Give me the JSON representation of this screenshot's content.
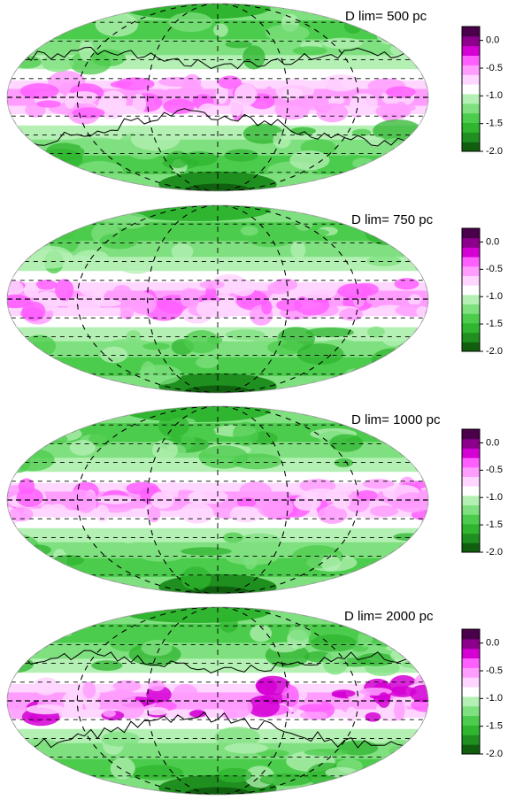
{
  "chart_data": [
    {
      "type": "heatmap",
      "title": "D lim= 500 pc",
      "colorbar": {
        "ticks": [
          "0.0",
          "-0.5",
          "-1.0",
          "-1.5",
          "-2.0"
        ],
        "range": [
          -2.0,
          0.25
        ]
      },
      "contours": true
    },
    {
      "type": "heatmap",
      "title": "D lim= 750 pc",
      "colorbar": {
        "ticks": [
          "0.0",
          "-0.5",
          "-1.0",
          "-1.5",
          "-2.0"
        ],
        "range": [
          -2.0,
          0.25
        ]
      },
      "contours": false
    },
    {
      "type": "heatmap",
      "title": "D lim= 1000 pc",
      "colorbar": {
        "ticks": [
          "0.0",
          "-0.5",
          "-1.0",
          "-1.5",
          "-2.0"
        ],
        "range": [
          -2.0,
          0.25
        ]
      },
      "contours": false
    },
    {
      "type": "heatmap",
      "title": "D lim= 2000 pc",
      "colorbar": {
        "ticks": [
          "0.0",
          "-0.5",
          "-1.0",
          "-1.5",
          "-2.0"
        ],
        "range": [
          -2.0,
          0.25
        ]
      },
      "contours": true
    }
  ],
  "colors": {
    "scale": [
      "#0f5f0f",
      "#1f8f1f",
      "#2fb52f",
      "#4ccc4c",
      "#7fe07f",
      "#b4f0b4",
      "#ffffff",
      "#ffd6ff",
      "#ff9dff",
      "#ff5fff",
      "#d400d4",
      "#8c008c",
      "#4a004a"
    ]
  }
}
